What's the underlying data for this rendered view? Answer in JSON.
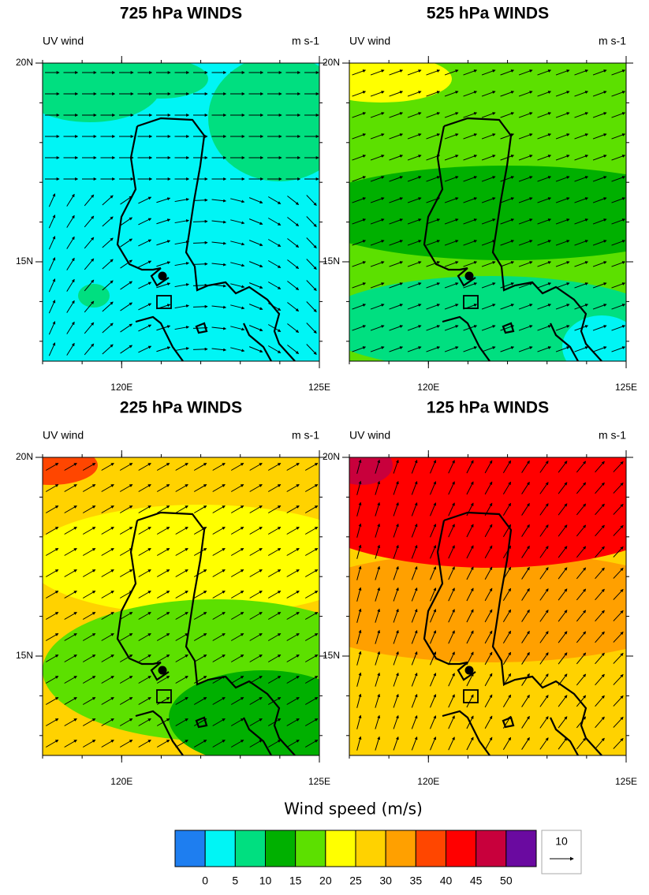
{
  "panels": [
    {
      "title": "725 hPa WINDS",
      "left_label": "UV wind",
      "right_label": "m s-1",
      "xlim": [
        118,
        125
      ],
      "ylim": [
        12.5,
        20
      ],
      "xticks": [
        {
          "value": 120,
          "label": "120E"
        },
        {
          "value": 125,
          "label": "125E"
        }
      ],
      "yticks": [
        {
          "value": 15,
          "label": "15N"
        },
        {
          "value": 20,
          "label": "20N"
        }
      ]
    },
    {
      "title": "525 hPa WINDS",
      "left_label": "UV wind",
      "right_label": "m s-1",
      "xlim": [
        118,
        125
      ],
      "ylim": [
        12.5,
        20
      ],
      "xticks": [
        {
          "value": 120,
          "label": "120E"
        },
        {
          "value": 125,
          "label": "125E"
        }
      ],
      "yticks": [
        {
          "value": 15,
          "label": "15N"
        },
        {
          "value": 20,
          "label": "20N"
        }
      ]
    },
    {
      "title": "225 hPa WINDS",
      "left_label": "UV wind",
      "right_label": "m s-1",
      "xlim": [
        118,
        125
      ],
      "ylim": [
        12.5,
        20
      ],
      "xticks": [
        {
          "value": 120,
          "label": "120E"
        },
        {
          "value": 125,
          "label": "125E"
        }
      ],
      "yticks": [
        {
          "value": 15,
          "label": "15N"
        },
        {
          "value": 20,
          "label": "20N"
        }
      ]
    },
    {
      "title": "125 hPa WINDS",
      "left_label": "UV wind",
      "right_label": "m s-1",
      "xlim": [
        118,
        125
      ],
      "ylim": [
        12.5,
        20
      ],
      "xticks": [
        {
          "value": 120,
          "label": "120E"
        },
        {
          "value": 125,
          "label": "125E"
        }
      ],
      "yticks": [
        {
          "value": 15,
          "label": "15N"
        },
        {
          "value": 20,
          "label": "20N"
        }
      ]
    }
  ],
  "colorbar": {
    "title": "Wind speed (m/s)",
    "labels": [
      0,
      5,
      10,
      15,
      20,
      25,
      30,
      35,
      40,
      45,
      50
    ],
    "colors": [
      "#1e7ef0",
      "#00f5f5",
      "#00df80",
      "#00b000",
      "#5ce000",
      "#ffff00",
      "#ffd200",
      "#ffa000",
      "#ff4600",
      "#ff0000",
      "#c8003c",
      "#6a0aa0"
    ]
  },
  "reference_vector": {
    "label": "10"
  }
}
